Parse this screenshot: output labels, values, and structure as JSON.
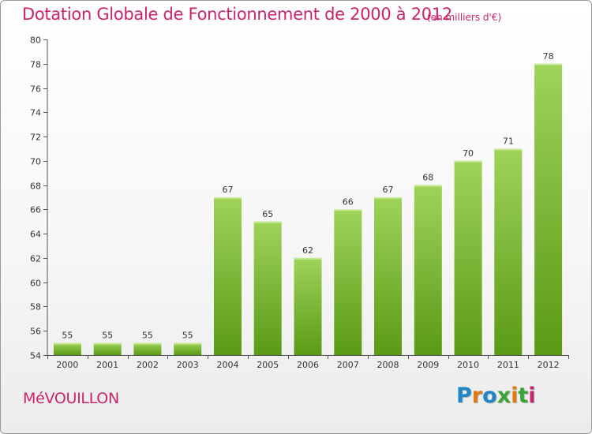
{
  "header": {
    "title": "Dotation Globale de Fonctionnement de 2000 à 2012",
    "subtitle": "(en milliers d'€)"
  },
  "footer": {
    "commune": "MéVOUILLON",
    "logo": "Proxiti"
  },
  "colors": {
    "title": "#c8246e",
    "bar_top": "#9fd35a",
    "bar_bottom": "#5a9a16",
    "logo_letters": [
      "#1f86c9",
      "#e07b12",
      "#1f86c9",
      "#3aa43a",
      "#e07b12",
      "#3aa43a",
      "#c8246e"
    ]
  },
  "chart_data": {
    "type": "bar",
    "title": "Dotation Globale de Fonctionnement de 2000 à 2012",
    "subtitle": "(en milliers d'€)",
    "xlabel": "",
    "ylabel": "",
    "categories": [
      "2000",
      "2001",
      "2002",
      "2003",
      "2004",
      "2005",
      "2006",
      "2007",
      "2008",
      "2009",
      "2010",
      "2011",
      "2012"
    ],
    "values": [
      55,
      55,
      55,
      55,
      67,
      65,
      62,
      66,
      67,
      68,
      70,
      71,
      78
    ],
    "ylim": [
      54,
      80
    ],
    "yticks": [
      54,
      56,
      58,
      60,
      62,
      64,
      66,
      68,
      70,
      72,
      74,
      76,
      78,
      80
    ],
    "grid": false,
    "legend": "none"
  }
}
